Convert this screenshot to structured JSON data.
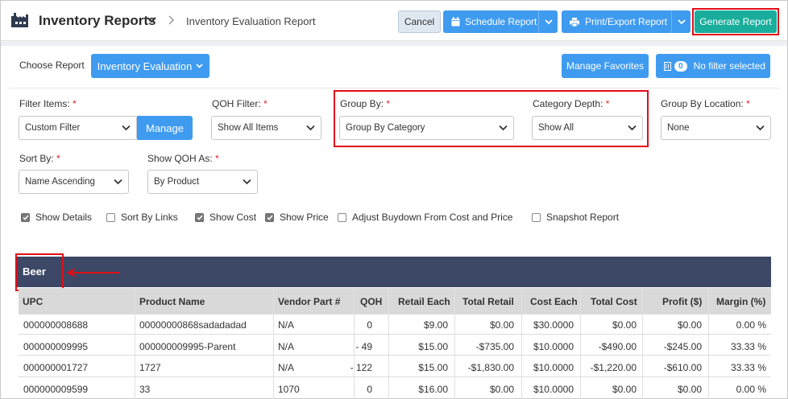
{
  "header": {
    "app_title": "Inventory Reports",
    "breadcrumb": "Inventory Evaluation Report",
    "cancel_label": "Cancel",
    "schedule_label": "Schedule Report",
    "print_label": "Print/Export Report",
    "generate_label": "Generate Report"
  },
  "toolbar": {
    "choose_report_label": "Choose Report",
    "report_select": "Inventory Evaluation",
    "manage_favorites_label": "Manage Favorites",
    "filter_count": "0",
    "no_filter_label": "No filter selected"
  },
  "filters": {
    "filter_items_label": "Filter Items:",
    "filter_items_value": "Custom Filter",
    "manage_label": "Manage",
    "qoh_filter_label": "QOH Filter:",
    "qoh_filter_value": "Show All Items",
    "group_by_label": "Group By:",
    "group_by_value": "Group By Category",
    "category_depth_label": "Category Depth:",
    "category_depth_value": "Show All",
    "group_by_location_label": "Group By Location:",
    "group_by_location_value": "None",
    "sort_by_label": "Sort By:",
    "sort_by_value": "Name Ascending",
    "show_qoh_as_label": "Show QOH As:",
    "show_qoh_as_value": "By Product",
    "required_mark": "*"
  },
  "checkboxes": [
    {
      "label": "Show Details",
      "checked": true
    },
    {
      "label": "Sort By Links",
      "checked": false
    },
    {
      "label": "Show Cost",
      "checked": true
    },
    {
      "label": "Show Price",
      "checked": true
    },
    {
      "label": "Adjust Buydown From Cost and Price",
      "checked": false
    },
    {
      "label": "Snapshot Report",
      "checked": false
    }
  ],
  "table": {
    "group_title": "Beer",
    "columns": [
      "UPC",
      "Product Name",
      "Vendor Part #",
      "QOH",
      "Retail Each",
      "Total Retail",
      "Cost Each",
      "Total Cost",
      "Profit ($)",
      "Margin (%)"
    ],
    "rows": [
      [
        "000000008688",
        "00000000868sadadadad",
        "N/A",
        "0",
        "$9.00",
        "$0.00",
        "$30.0000",
        "$0.00",
        "$0.00",
        "0.00 %"
      ],
      [
        "000000009995",
        "000000009995-Parent",
        "N/A",
        "- 49",
        "$15.00",
        "-$735.00",
        "$10.0000",
        "-$490.00",
        "-$245.00",
        "33.33 %"
      ],
      [
        "000000001727",
        "1727",
        "N/A",
        "- 122",
        "$15.00",
        "-$1,830.00",
        "$10.0000",
        "-$1,220.00",
        "-$610.00",
        "33.33 %"
      ],
      [
        "000000009599",
        "33",
        "1070",
        "0",
        "$16.00",
        "$0.00",
        "$10.0000",
        "$0.00",
        "$0.00",
        "0.00 %"
      ]
    ]
  },
  "colors": {
    "primary_blue": "#3f9bf0",
    "generate_teal": "#19ad9c",
    "group_band": "#3d4866",
    "highlight_red": "#e10d16"
  }
}
